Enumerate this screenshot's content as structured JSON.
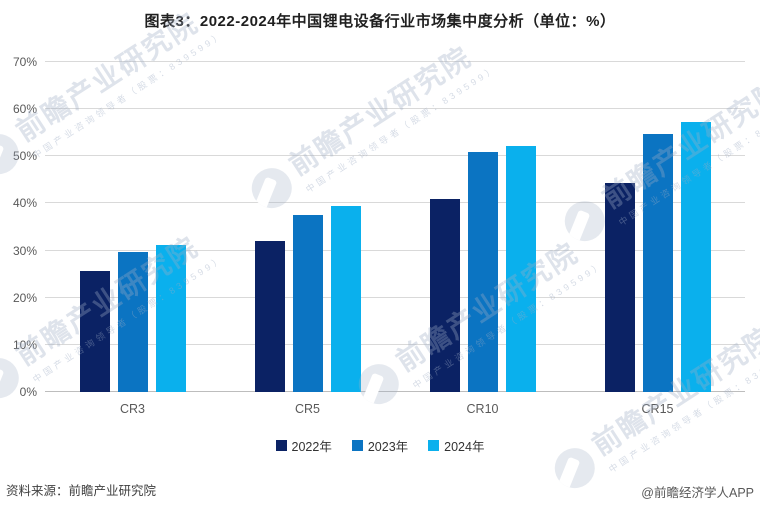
{
  "page": {
    "title": "图表3：2022-2024年中国锂电设备行业市场集中度分析（单位：%）",
    "source_note": "资料来源：前瞻产业研究院",
    "credit_note": "@前瞻经济学人APP"
  },
  "watermark": {
    "brand": "前瞻产业研究院",
    "tagline": "中国产业咨询领导者（股票：839599）"
  },
  "chart_data": {
    "type": "bar",
    "title": "图表3：2022-2024年中国锂电设备行业市场集中度分析（单位：%）",
    "categories": [
      "CR3",
      "CR5",
      "CR10",
      "CR15"
    ],
    "series": [
      {
        "name": "2022年",
        "color": "#0b2264",
        "values": [
          25.6,
          32.1,
          40.9,
          44.4
        ]
      },
      {
        "name": "2023年",
        "color": "#0b74c2",
        "values": [
          29.6,
          37.6,
          50.9,
          54.7
        ]
      },
      {
        "name": "2024年",
        "color": "#0ab0ed",
        "values": [
          31.2,
          39.4,
          52.2,
          57.2
        ]
      }
    ],
    "unit": "%",
    "xlabel": "",
    "ylabel": "",
    "ylim": [
      0,
      70
    ],
    "ytick_step": 10,
    "ytick_labels": [
      "0%",
      "10%",
      "20%",
      "30%",
      "40%",
      "50%",
      "60%",
      "70%"
    ],
    "grid": true,
    "legend_position": "bottom",
    "style": {
      "grid_color": "#d9d9d9",
      "axis_color": "#bdbdbd",
      "tick_label_color": "#595959",
      "category_label_color": "#595959",
      "legend_label_color": "#333333"
    }
  }
}
